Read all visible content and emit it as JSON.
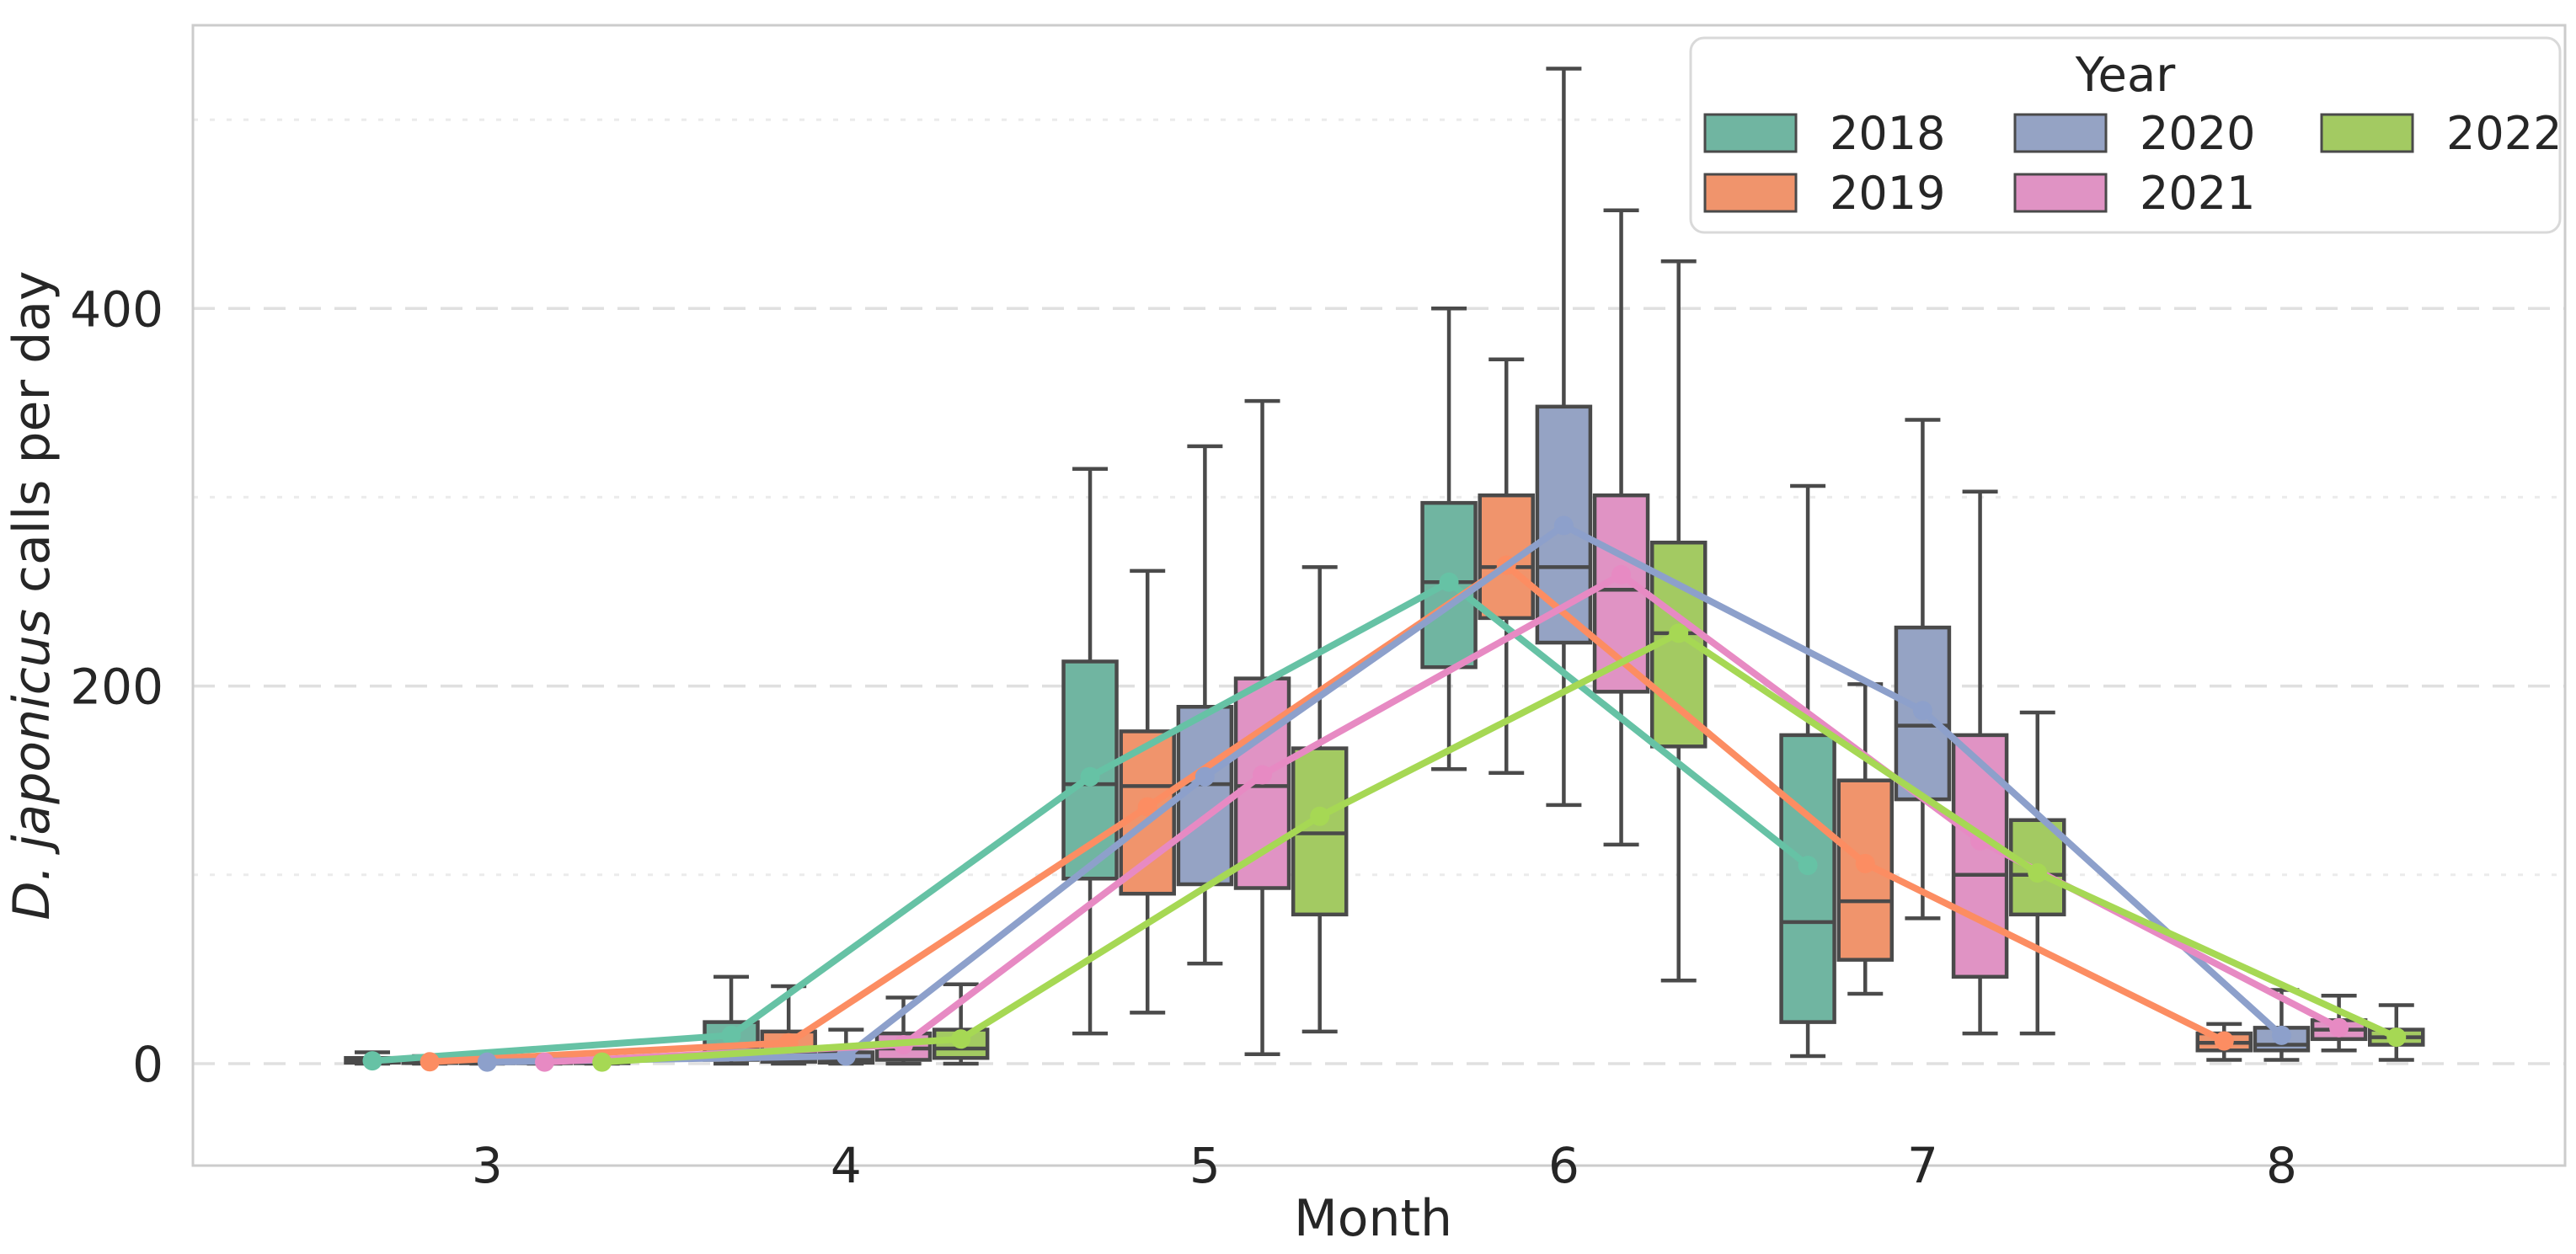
{
  "chart_data": {
    "type": "box",
    "overlay": "mean-lines",
    "title": "",
    "xlabel": "Month",
    "ylabel": "D. japonicus calls per day",
    "ylabel_italic": "D. japonicus",
    "ylabel_rest": " calls per day",
    "xlim": [
      2.18,
      8.79
    ],
    "ylim": [
      -54,
      550
    ],
    "x_ticks": [
      {
        "value": 3,
        "label": "3"
      },
      {
        "value": 4,
        "label": "4"
      },
      {
        "value": 5,
        "label": "5"
      },
      {
        "value": 6,
        "label": "6"
      },
      {
        "value": 7,
        "label": "7"
      },
      {
        "value": 8,
        "label": "8"
      }
    ],
    "y_ticks": [
      {
        "value": 0,
        "label": "0"
      },
      {
        "value": 200,
        "label": "200"
      },
      {
        "value": 400,
        "label": "400"
      }
    ],
    "grid_major": [
      0,
      200,
      400
    ],
    "grid_minor": [
      100,
      300,
      500
    ],
    "grid_on": true,
    "legend": {
      "title": "Year",
      "entries": [
        "2018",
        "2019",
        "2020",
        "2021",
        "2022"
      ],
      "position": "upper right",
      "columns": 3
    },
    "dodge_offsets": [
      -0.32,
      -0.16,
      0,
      0.16,
      0.32
    ],
    "colors": {
      "box_edge": "#4a4a4a",
      "frame": "#cccccc",
      "grid_major": "#e0e0e0",
      "grid_minor": "#ebebeb",
      "text": "#262626",
      "legend_border": "#d9d9d9",
      "background": "#ffffff"
    },
    "series": [
      {
        "name": "2018",
        "line_color": "#66c2a5",
        "fill_color": "#70b5a1",
        "boxes": [
          {
            "month": 3,
            "lo": 0,
            "q1": 0.5,
            "med": 1.5,
            "q3": 3,
            "hi": 6
          },
          {
            "month": 4,
            "lo": 0,
            "q1": 2,
            "med": 9,
            "q3": 22,
            "hi": 46
          },
          {
            "month": 5,
            "lo": 16,
            "q1": 98,
            "med": 148,
            "q3": 213,
            "hi": 315
          },
          {
            "month": 6,
            "lo": 156,
            "q1": 210,
            "med": 255,
            "q3": 297,
            "hi": 400
          },
          {
            "month": 7,
            "lo": 4,
            "q1": 22,
            "med": 75,
            "q3": 174,
            "hi": 306
          }
        ],
        "means": [
          {
            "month": 3,
            "value": 1.5
          },
          {
            "month": 4,
            "value": 15
          },
          {
            "month": 5,
            "value": 152
          },
          {
            "month": 6,
            "value": 255
          },
          {
            "month": 7,
            "value": 105
          }
        ]
      },
      {
        "name": "2019",
        "line_color": "#fc8d62",
        "fill_color": "#f0946c",
        "boxes": [
          {
            "month": 3,
            "lo": 0,
            "q1": 0.3,
            "med": 1,
            "q3": 2,
            "hi": 4
          },
          {
            "month": 4,
            "lo": 0,
            "q1": 1,
            "med": 5,
            "q3": 17,
            "hi": 41
          },
          {
            "month": 5,
            "lo": 27,
            "q1": 90,
            "med": 147,
            "q3": 176,
            "hi": 261
          },
          {
            "month": 6,
            "lo": 154,
            "q1": 236,
            "med": 263,
            "q3": 301,
            "hi": 373
          },
          {
            "month": 7,
            "lo": 37,
            "q1": 55,
            "med": 86,
            "q3": 150,
            "hi": 201
          },
          {
            "month": 8,
            "lo": 2,
            "q1": 7,
            "med": 11,
            "q3": 16,
            "hi": 21
          }
        ],
        "means": [
          {
            "month": 3,
            "value": 1
          },
          {
            "month": 4,
            "value": 11
          },
          {
            "month": 5,
            "value": 136
          },
          {
            "month": 6,
            "value": 264
          },
          {
            "month": 7,
            "value": 106
          },
          {
            "month": 8,
            "value": 12
          }
        ]
      },
      {
        "name": "2020",
        "line_color": "#8da0cb",
        "fill_color": "#95a3c4",
        "boxes": [
          {
            "month": 3,
            "lo": 0,
            "q1": 0.2,
            "med": 0.6,
            "q3": 1.2,
            "hi": 2.5
          },
          {
            "month": 4,
            "lo": 0,
            "q1": 0.5,
            "med": 2,
            "q3": 6,
            "hi": 18
          },
          {
            "month": 5,
            "lo": 53,
            "q1": 95,
            "med": 148,
            "q3": 189,
            "hi": 327
          },
          {
            "month": 6,
            "lo": 137,
            "q1": 223,
            "med": 263,
            "q3": 348,
            "hi": 527
          },
          {
            "month": 7,
            "lo": 77,
            "q1": 140,
            "med": 179,
            "q3": 231,
            "hi": 341
          },
          {
            "month": 8,
            "lo": 2,
            "q1": 7,
            "med": 10,
            "q3": 19,
            "hi": 39
          }
        ],
        "means": [
          {
            "month": 3,
            "value": 0.8
          },
          {
            "month": 4,
            "value": 4
          },
          {
            "month": 5,
            "value": 152
          },
          {
            "month": 6,
            "value": 285
          },
          {
            "month": 7,
            "value": 187
          },
          {
            "month": 8,
            "value": 15
          }
        ]
      },
      {
        "name": "2021",
        "line_color": "#e78ac3",
        "fill_color": "#e093c4",
        "boxes": [
          {
            "month": 3,
            "lo": 0,
            "q1": 0.2,
            "med": 0.6,
            "q3": 1.2,
            "hi": 2.5
          },
          {
            "month": 4,
            "lo": 0,
            "q1": 2,
            "med": 8,
            "q3": 16,
            "hi": 35
          },
          {
            "month": 5,
            "lo": 5,
            "q1": 93,
            "med": 147,
            "q3": 204,
            "hi": 351
          },
          {
            "month": 6,
            "lo": 116,
            "q1": 197,
            "med": 251,
            "q3": 301,
            "hi": 452
          },
          {
            "month": 7,
            "lo": 16,
            "q1": 46,
            "med": 100,
            "q3": 174,
            "hi": 303
          },
          {
            "month": 8,
            "lo": 7,
            "q1": 13,
            "med": 18,
            "q3": 23,
            "hi": 36
          }
        ],
        "means": [
          {
            "month": 3,
            "value": 0.8
          },
          {
            "month": 4,
            "value": 10
          },
          {
            "month": 5,
            "value": 153
          },
          {
            "month": 6,
            "value": 259
          },
          {
            "month": 7,
            "value": 118
          },
          {
            "month": 8,
            "value": 19
          }
        ]
      },
      {
        "name": "2022",
        "line_color": "#a6d854",
        "fill_color": "#a3ca62",
        "boxes": [
          {
            "month": 3,
            "lo": 0,
            "q1": 0.2,
            "med": 0.6,
            "q3": 1.2,
            "hi": 2.5
          },
          {
            "month": 4,
            "lo": 0,
            "q1": 3,
            "med": 8,
            "q3": 18,
            "hi": 42
          },
          {
            "month": 5,
            "lo": 17,
            "q1": 79,
            "med": 122,
            "q3": 167,
            "hi": 263
          },
          {
            "month": 6,
            "lo": 44,
            "q1": 168,
            "med": 228,
            "q3": 276,
            "hi": 425
          },
          {
            "month": 7,
            "lo": 16,
            "q1": 79,
            "med": 100,
            "q3": 129,
            "hi": 186
          },
          {
            "month": 8,
            "lo": 2,
            "q1": 10,
            "med": 14,
            "q3": 18,
            "hi": 31
          }
        ],
        "means": [
          {
            "month": 3,
            "value": 0.8
          },
          {
            "month": 4,
            "value": 13
          },
          {
            "month": 5,
            "value": 131
          },
          {
            "month": 6,
            "value": 228
          },
          {
            "month": 7,
            "value": 101
          },
          {
            "month": 8,
            "value": 14
          }
        ]
      }
    ]
  }
}
